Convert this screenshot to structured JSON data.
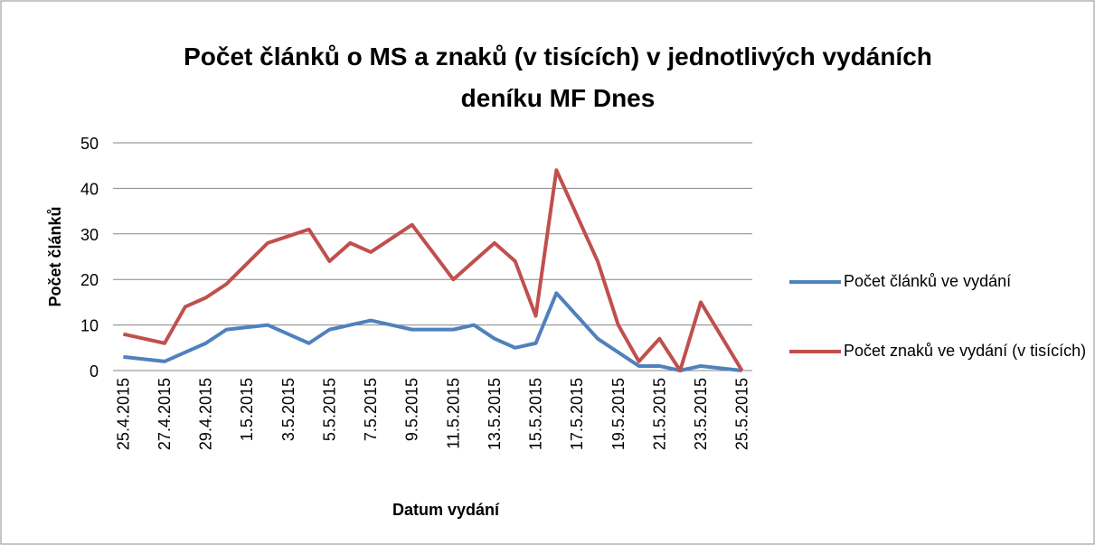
{
  "chart_data": {
    "type": "line",
    "title": "Počet článků o MS a znaků (v tisících) v jednotlivých vydáních deníku MF Dnes",
    "xlabel": "Datum vydání",
    "ylabel": "Počet článků",
    "categories": [
      "25.4.2015",
      null,
      "27.4.2015",
      null,
      "29.4.2015",
      null,
      "1.5.2015",
      null,
      "3.5.2015",
      null,
      "5.5.2015",
      null,
      "7.5.2015",
      null,
      "9.5.2015",
      null,
      "11.5.2015",
      null,
      "13.5.2015",
      null,
      "15.5.2015",
      null,
      "17.5.2015",
      null,
      "19.5.2015",
      null,
      "21.5.2015",
      null,
      "23.5.2015",
      null,
      "25.5.2015"
    ],
    "series": [
      {
        "name": "Počet článků ve vydání",
        "color": "#4f81bd",
        "values": [
          3,
          2.5,
          2,
          4,
          6,
          9,
          9.5,
          10,
          8,
          6,
          9,
          10,
          11,
          10,
          9,
          9,
          9,
          10,
          7,
          5,
          6,
          17,
          12,
          7,
          4,
          1,
          1,
          0,
          1,
          0.5,
          0
        ]
      },
      {
        "name": "Počet znaků ve vydání (v tisících)",
        "color": "#c0504d",
        "values": [
          8,
          7,
          6,
          14,
          16,
          19,
          23.5,
          28,
          29.5,
          31,
          24,
          28,
          26,
          29,
          32,
          26,
          20,
          24,
          28,
          24,
          12,
          44,
          34,
          24,
          10,
          2,
          7,
          0,
          15,
          7.5,
          0
        ]
      }
    ],
    "ylim": [
      0,
      50
    ],
    "yticks": [
      0,
      10,
      20,
      30,
      40,
      50
    ],
    "grid": true,
    "legend": "right"
  }
}
